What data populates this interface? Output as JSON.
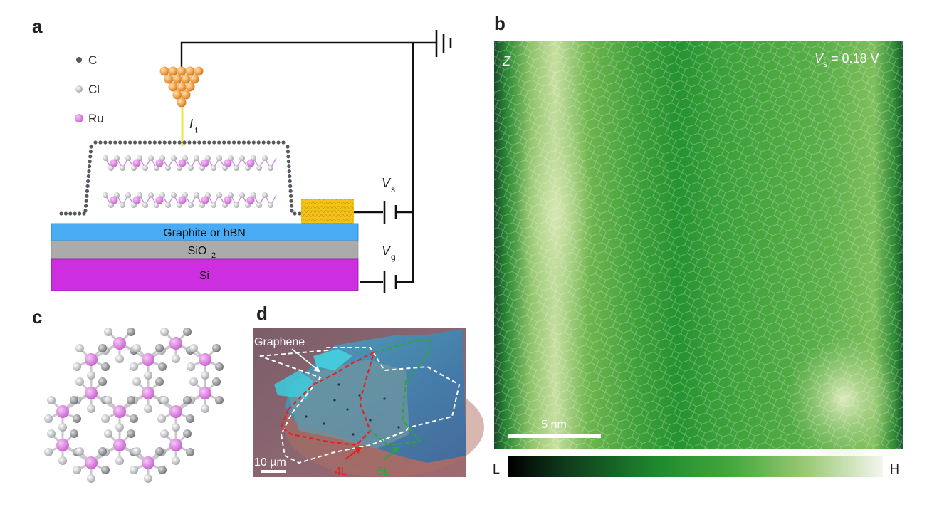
{
  "panels": {
    "a": {
      "label": "a",
      "legend": [
        {
          "symbol": "carbon-atom",
          "text": "C",
          "color": "#555a60"
        },
        {
          "symbol": "chlorine-atom",
          "text": "Cl",
          "color": "#b9bcc2"
        },
        {
          "symbol": "ruthenium-atom",
          "text": "Ru",
          "color": "#d97ad9"
        }
      ],
      "current_label": "I",
      "current_sub": "t",
      "vs_label": "V",
      "vs_sub": "s",
      "vg_label": "V",
      "vg_sub": "g",
      "layer_top": "Graphite or hBN",
      "layer_mid_main": "SiO",
      "layer_mid_sub": "2",
      "layer_bottom": "Si",
      "colors": {
        "graphite": "#4aabf5",
        "sio2": "#ababab",
        "si": "#cc2ee0",
        "electrode": "#f2c318"
      }
    },
    "b": {
      "label": "b",
      "channel": "Z",
      "bias_main": "V",
      "bias_sub": "s",
      "bias_value": " = 0.18 V",
      "scalebar": "5 nm",
      "colorbar_low": "L",
      "colorbar_high": "H"
    },
    "c": {
      "label": "c"
    },
    "d": {
      "label": "d",
      "graphene_label": "Graphene",
      "scalebar": "10 µm",
      "layer_4": "4L",
      "layer_5": "5L",
      "colors": {
        "layer_4": "#e82020",
        "layer_5": "#27a83a"
      }
    }
  }
}
